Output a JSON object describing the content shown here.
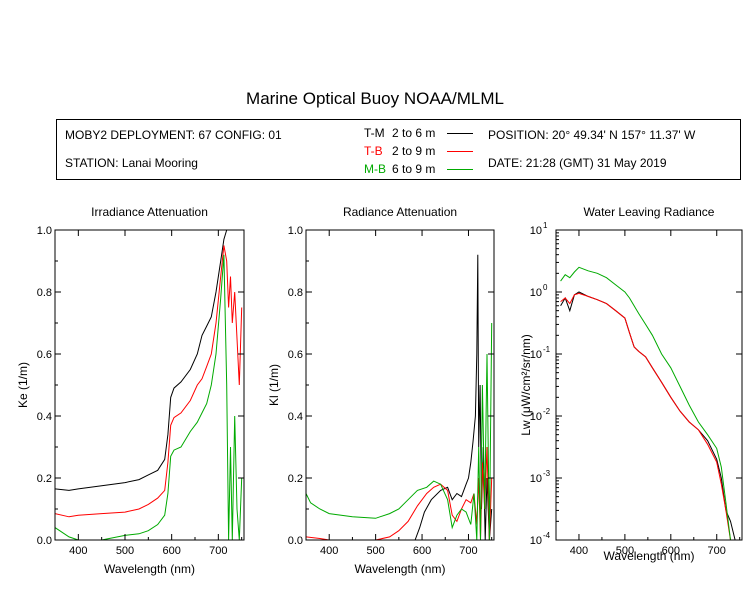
{
  "title": "Marine Optical Buoy NOAA/MLML",
  "info": {
    "deployment": "MOBY2 DEPLOYMENT: 67 CONFIG: 01",
    "station": "STATION: Lanai Mooring",
    "position": "POSITION: 20° 49.34' N   157° 11.37' W",
    "date": "DATE: 21:28 (GMT) 31 May 2019"
  },
  "legend": [
    {
      "code": "T-M",
      "range": "2 to 6  m",
      "color": "#000000"
    },
    {
      "code": "T-B",
      "range": "2 to 9  m",
      "color": "#ff0000"
    },
    {
      "code": "M-B",
      "range": "6 to 9  m",
      "color": "#00aa00"
    }
  ],
  "chart_data": [
    {
      "type": "line",
      "title": "Irradiance Attenuation",
      "xlabel": "Wavelength (nm)",
      "ylabel": "Ke  (1/m)",
      "xlim": [
        350,
        755
      ],
      "ylim": [
        0,
        1.0
      ],
      "xticks": [
        400,
        500,
        600,
        700
      ],
      "yticks": [
        "0.0",
        "0.2",
        "0.4",
        "0.6",
        "0.8",
        "1.0"
      ],
      "series": [
        {
          "name": "T-M",
          "color": "#000000",
          "x": [
            350,
            380,
            400,
            450,
            500,
            530,
            550,
            570,
            585,
            592,
            598,
            605,
            620,
            640,
            655,
            665,
            675,
            685,
            695,
            705,
            712,
            718,
            722,
            726,
            730,
            735,
            740,
            745,
            750
          ],
          "y": [
            0.165,
            0.16,
            0.165,
            0.175,
            0.185,
            0.195,
            0.21,
            0.225,
            0.26,
            0.34,
            0.46,
            0.49,
            0.51,
            0.55,
            0.6,
            0.66,
            0.69,
            0.72,
            0.8,
            0.9,
            0.97,
            1.0,
            1.0,
            1.0,
            1.0,
            1.0,
            1.0,
            1.0,
            1.0
          ]
        },
        {
          "name": "T-B",
          "color": "#ff0000",
          "x": [
            350,
            380,
            400,
            450,
            500,
            530,
            550,
            570,
            585,
            592,
            598,
            605,
            620,
            640,
            655,
            665,
            675,
            685,
            695,
            705,
            712,
            718,
            722,
            726,
            730,
            735,
            740,
            745,
            750
          ],
          "y": [
            0.085,
            0.075,
            0.08,
            0.085,
            0.09,
            0.1,
            0.115,
            0.135,
            0.16,
            0.25,
            0.37,
            0.395,
            0.41,
            0.45,
            0.5,
            0.52,
            0.56,
            0.6,
            0.7,
            0.85,
            0.95,
            0.9,
            0.75,
            0.85,
            0.7,
            0.8,
            0.65,
            0.5,
            0.75
          ]
        },
        {
          "name": "M-B",
          "color": "#00aa00",
          "x": [
            350,
            360,
            380,
            400,
            450,
            500,
            530,
            550,
            570,
            585,
            592,
            598,
            605,
            620,
            640,
            655,
            665,
            675,
            685,
            695,
            705,
            712,
            718,
            722,
            726,
            730,
            735,
            740,
            745,
            750
          ],
          "y": [
            0.04,
            0.03,
            0.01,
            0.0,
            0.0,
            0.015,
            0.02,
            0.03,
            0.05,
            0.08,
            0.15,
            0.27,
            0.29,
            0.3,
            0.35,
            0.38,
            0.41,
            0.44,
            0.5,
            0.6,
            0.78,
            0.92,
            0.5,
            0.0,
            0.3,
            0.0,
            0.4,
            0.1,
            0.0,
            0.2
          ]
        }
      ]
    },
    {
      "type": "line",
      "title": "Radiance Attenuation",
      "xlabel": "Wavelength (nm)",
      "ylabel": "Kl  (1/m)",
      "xlim": [
        350,
        755
      ],
      "ylim": [
        0,
        1.0
      ],
      "xticks": [
        400,
        500,
        600,
        700
      ],
      "yticks": [
        "0.0",
        "0.2",
        "0.4",
        "0.6",
        "0.8",
        "1.0"
      ],
      "series": [
        {
          "name": "T-M",
          "color": "#000000",
          "x": [
            585,
            595,
            605,
            620,
            640,
            655,
            665,
            675,
            685,
            695,
            700,
            705,
            710,
            715,
            718,
            720,
            722,
            725,
            728,
            732,
            736,
            740,
            745,
            750
          ],
          "y": [
            0.0,
            0.04,
            0.09,
            0.13,
            0.16,
            0.17,
            0.13,
            0.15,
            0.14,
            0.18,
            0.2,
            0.25,
            0.32,
            0.4,
            0.6,
            0.92,
            0.3,
            0.5,
            0.1,
            0.3,
            0.0,
            0.2,
            0.0,
            0.1
          ]
        },
        {
          "name": "T-B",
          "color": "#ff0000",
          "x": [
            350,
            380,
            400,
            450,
            500,
            530,
            550,
            570,
            590,
            610,
            625,
            640,
            655,
            665,
            675,
            685,
            695,
            705,
            712,
            718,
            722,
            726,
            730,
            735,
            740,
            745,
            750
          ],
          "y": [
            0.01,
            0.005,
            0.0,
            0.0,
            0.0,
            0.01,
            0.03,
            0.06,
            0.11,
            0.15,
            0.17,
            0.18,
            0.16,
            0.08,
            0.06,
            0.1,
            0.13,
            0.12,
            0.15,
            0.05,
            0.2,
            0.0,
            0.25,
            0.1,
            0.3,
            0.0,
            0.2
          ]
        },
        {
          "name": "M-B",
          "color": "#00aa00",
          "x": [
            350,
            360,
            380,
            400,
            450,
            500,
            530,
            550,
            570,
            590,
            610,
            625,
            640,
            655,
            665,
            675,
            685,
            695,
            705,
            712,
            718,
            722,
            726,
            730,
            735,
            740,
            745,
            750
          ],
          "y": [
            0.15,
            0.12,
            0.1,
            0.085,
            0.075,
            0.07,
            0.085,
            0.1,
            0.13,
            0.16,
            0.17,
            0.19,
            0.18,
            0.13,
            0.04,
            0.08,
            0.1,
            0.09,
            0.05,
            0.15,
            0.0,
            0.3,
            0.0,
            0.5,
            0.1,
            0.6,
            0.0,
            0.7
          ]
        }
      ]
    },
    {
      "type": "line",
      "title": "Water Leaving Radiance",
      "xlabel": "Wavelength (nm)",
      "ylabel": "Lw  (μW/cm²/sr/nm)",
      "xlim": [
        350,
        755
      ],
      "ylim": [
        0.0001,
        10
      ],
      "yscale": "log",
      "xticks": [
        400,
        500,
        600,
        700
      ],
      "yticks": [
        10,
        1,
        0.1,
        0.01,
        0.001,
        0.0001
      ],
      "series": [
        {
          "name": "T-M",
          "color": "#000000",
          "x": [
            360,
            370,
            380,
            390,
            400,
            420,
            440,
            460,
            480,
            500,
            510,
            520,
            530,
            545,
            560,
            580,
            600,
            620,
            640,
            660,
            680,
            700,
            710,
            720,
            730,
            740
          ],
          "y": [
            0.6,
            0.8,
            0.5,
            0.9,
            1.0,
            0.85,
            0.75,
            0.65,
            0.5,
            0.38,
            0.22,
            0.13,
            0.11,
            0.09,
            0.06,
            0.035,
            0.02,
            0.012,
            0.008,
            0.006,
            0.004,
            0.002,
            0.001,
            0.0003,
            0.0002,
            0.0001
          ]
        },
        {
          "name": "T-B",
          "color": "#ff0000",
          "x": [
            360,
            370,
            380,
            390,
            400,
            420,
            440,
            460,
            480,
            500,
            510,
            520,
            530,
            545,
            560,
            580,
            600,
            620,
            640,
            660,
            680,
            700,
            710,
            720,
            730
          ],
          "y": [
            0.7,
            0.8,
            0.65,
            0.9,
            0.95,
            0.85,
            0.75,
            0.65,
            0.5,
            0.38,
            0.22,
            0.13,
            0.11,
            0.09,
            0.06,
            0.035,
            0.02,
            0.012,
            0.008,
            0.006,
            0.0035,
            0.0018,
            0.0008,
            0.0003,
            0.0001
          ]
        },
        {
          "name": "M-B",
          "color": "#00aa00",
          "x": [
            360,
            370,
            380,
            390,
            400,
            420,
            440,
            460,
            480,
            500,
            510,
            520,
            530,
            545,
            560,
            580,
            600,
            620,
            640,
            660,
            680,
            700,
            710,
            720,
            730
          ],
          "y": [
            1.5,
            1.9,
            1.7,
            2.1,
            2.5,
            2.2,
            2.0,
            1.7,
            1.3,
            1.0,
            0.8,
            0.6,
            0.45,
            0.3,
            0.2,
            0.1,
            0.06,
            0.03,
            0.015,
            0.008,
            0.005,
            0.003,
            0.0015,
            0.0004,
            0.0001
          ]
        }
      ]
    }
  ]
}
